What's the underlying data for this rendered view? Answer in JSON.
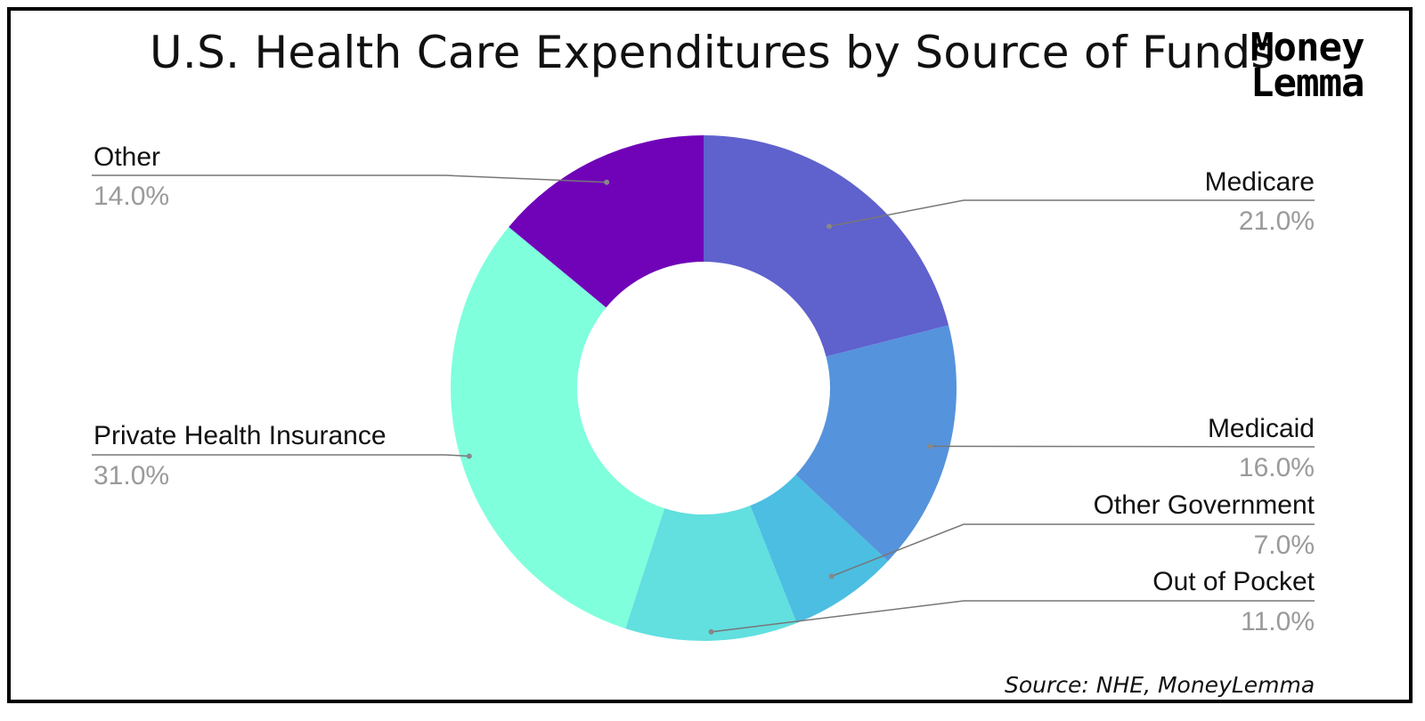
{
  "title": "U.S. Health Care Expenditures by Source of Funds",
  "logo": {
    "line1": "Money",
    "line2": "Lemma"
  },
  "source": "Source: NHE, MoneyLemma",
  "chart_data": {
    "type": "pie",
    "donut": true,
    "title": "U.S. Health Care Expenditures by Source of Funds",
    "slices": [
      {
        "label": "Medicare",
        "value": 21.0,
        "value_label": "21.0%",
        "color": "#5f61cd"
      },
      {
        "label": "Medicaid",
        "value": 16.0,
        "value_label": "16.0%",
        "color": "#5593dc"
      },
      {
        "label": "Other Government",
        "value": 7.0,
        "value_label": "7.0%",
        "color": "#4bbee2"
      },
      {
        "label": "Out of Pocket",
        "value": 11.0,
        "value_label": "11.0%",
        "color": "#62dfdf"
      },
      {
        "label": "Private Health Insurance",
        "value": 31.0,
        "value_label": "31.0%",
        "color": "#80ffdd"
      },
      {
        "label": "Other",
        "value": 14.0,
        "value_label": "14.0%",
        "color": "#7003b8"
      }
    ]
  }
}
